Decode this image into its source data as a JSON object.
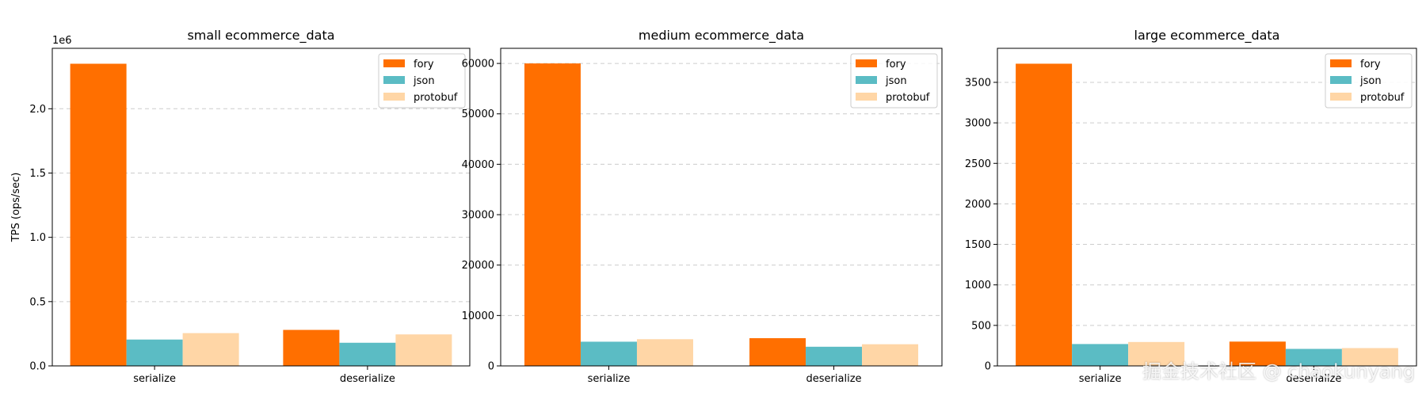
{
  "watermark": "掘金技术社区 @ chaokunyang",
  "colors": {
    "fory": "#ff6f00",
    "json": "#5bbcc4",
    "protobuf": "#ffd6a6"
  },
  "chart_data": [
    {
      "type": "bar",
      "title": "small ecommerce_data",
      "ylabel": "TPS (ops/sec)",
      "offset_text": "1e6",
      "categories": [
        "serialize",
        "deserialize"
      ],
      "series": [
        {
          "name": "fory",
          "values": [
            2350000,
            280000
          ]
        },
        {
          "name": "json",
          "values": [
            205000,
            180000
          ]
        },
        {
          "name": "protobuf",
          "values": [
            255000,
            245000
          ]
        }
      ],
      "ylim": [
        0,
        2470000
      ],
      "yticks": [
        0,
        500000,
        1000000,
        1500000,
        2000000
      ],
      "ytick_labels": [
        "0.0",
        "0.5",
        "1.0",
        "1.5",
        "2.0"
      ],
      "grid": true,
      "legend": "top-right"
    },
    {
      "type": "bar",
      "title": "medium ecommerce_data",
      "ylabel": "",
      "categories": [
        "serialize",
        "deserialize"
      ],
      "series": [
        {
          "name": "fory",
          "values": [
            60000,
            5500
          ]
        },
        {
          "name": "json",
          "values": [
            4800,
            3800
          ]
        },
        {
          "name": "protobuf",
          "values": [
            5300,
            4300
          ]
        }
      ],
      "ylim": [
        0,
        63000
      ],
      "yticks": [
        0,
        10000,
        20000,
        30000,
        40000,
        50000,
        60000
      ],
      "ytick_labels": [
        "0",
        "10000",
        "20000",
        "30000",
        "40000",
        "50000",
        "60000"
      ],
      "grid": true,
      "legend": "top-right"
    },
    {
      "type": "bar",
      "title": "large ecommerce_data",
      "ylabel": "",
      "categories": [
        "serialize",
        "deserialize"
      ],
      "series": [
        {
          "name": "fory",
          "values": [
            3730,
            300
          ]
        },
        {
          "name": "json",
          "values": [
            270,
            210
          ]
        },
        {
          "name": "protobuf",
          "values": [
            295,
            220
          ]
        }
      ],
      "ylim": [
        0,
        3920
      ],
      "yticks": [
        0,
        500,
        1000,
        1500,
        2000,
        2500,
        3000,
        3500
      ],
      "ytick_labels": [
        "0",
        "500",
        "1000",
        "1500",
        "2000",
        "2500",
        "3000",
        "3500"
      ],
      "grid": true,
      "legend": "top-right"
    }
  ]
}
